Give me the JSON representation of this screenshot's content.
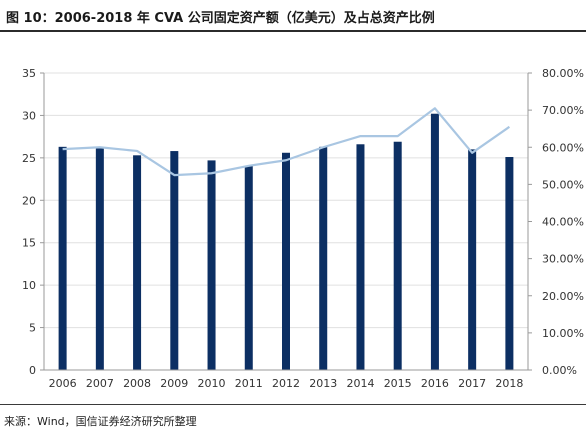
{
  "header": {
    "title": "图 10：2006-2018 年 CVA 公司固定资产额（亿美元）及占总资产比例"
  },
  "footer": {
    "source": "来源：Wind，国信证券经济研究所整理"
  },
  "colors": {
    "bar": "#0c2f63",
    "line": "#a9c6e2",
    "grid": "#e0e0e0"
  },
  "chart_data": {
    "type": "bar",
    "title": "图 10：2006-2018 年 CVA 公司固定资产额（亿美元）及占总资产比例",
    "xlabel": "",
    "ylabel": "",
    "categories": [
      "2006",
      "2007",
      "2008",
      "2009",
      "2010",
      "2011",
      "2012",
      "2013",
      "2014",
      "2015",
      "2016",
      "2017",
      "2018"
    ],
    "series": [
      {
        "type": "bar",
        "axis": "left",
        "values": [
          26.3,
          26.1,
          25.3,
          25.8,
          24.7,
          24.1,
          25.6,
          26.3,
          26.6,
          26.9,
          30.2,
          26.0,
          25.1
        ]
      },
      {
        "type": "line",
        "axis": "right",
        "values": [
          0.595,
          0.6,
          0.59,
          0.525,
          0.53,
          0.55,
          0.565,
          0.6,
          0.63,
          0.63,
          0.705,
          0.585,
          0.655
        ]
      }
    ],
    "ylim": [
      0,
      35
    ],
    "y2lim": [
      0,
      0.8
    ],
    "yticks": [
      "0",
      "5",
      "10",
      "15",
      "20",
      "25",
      "30",
      "35"
    ],
    "y2ticks": [
      "0.00%",
      "10.00%",
      "20.00%",
      "30.00%",
      "40.00%",
      "50.00%",
      "60.00%",
      "70.00%",
      "80.00%"
    ],
    "grid": true,
    "legend": "none"
  }
}
